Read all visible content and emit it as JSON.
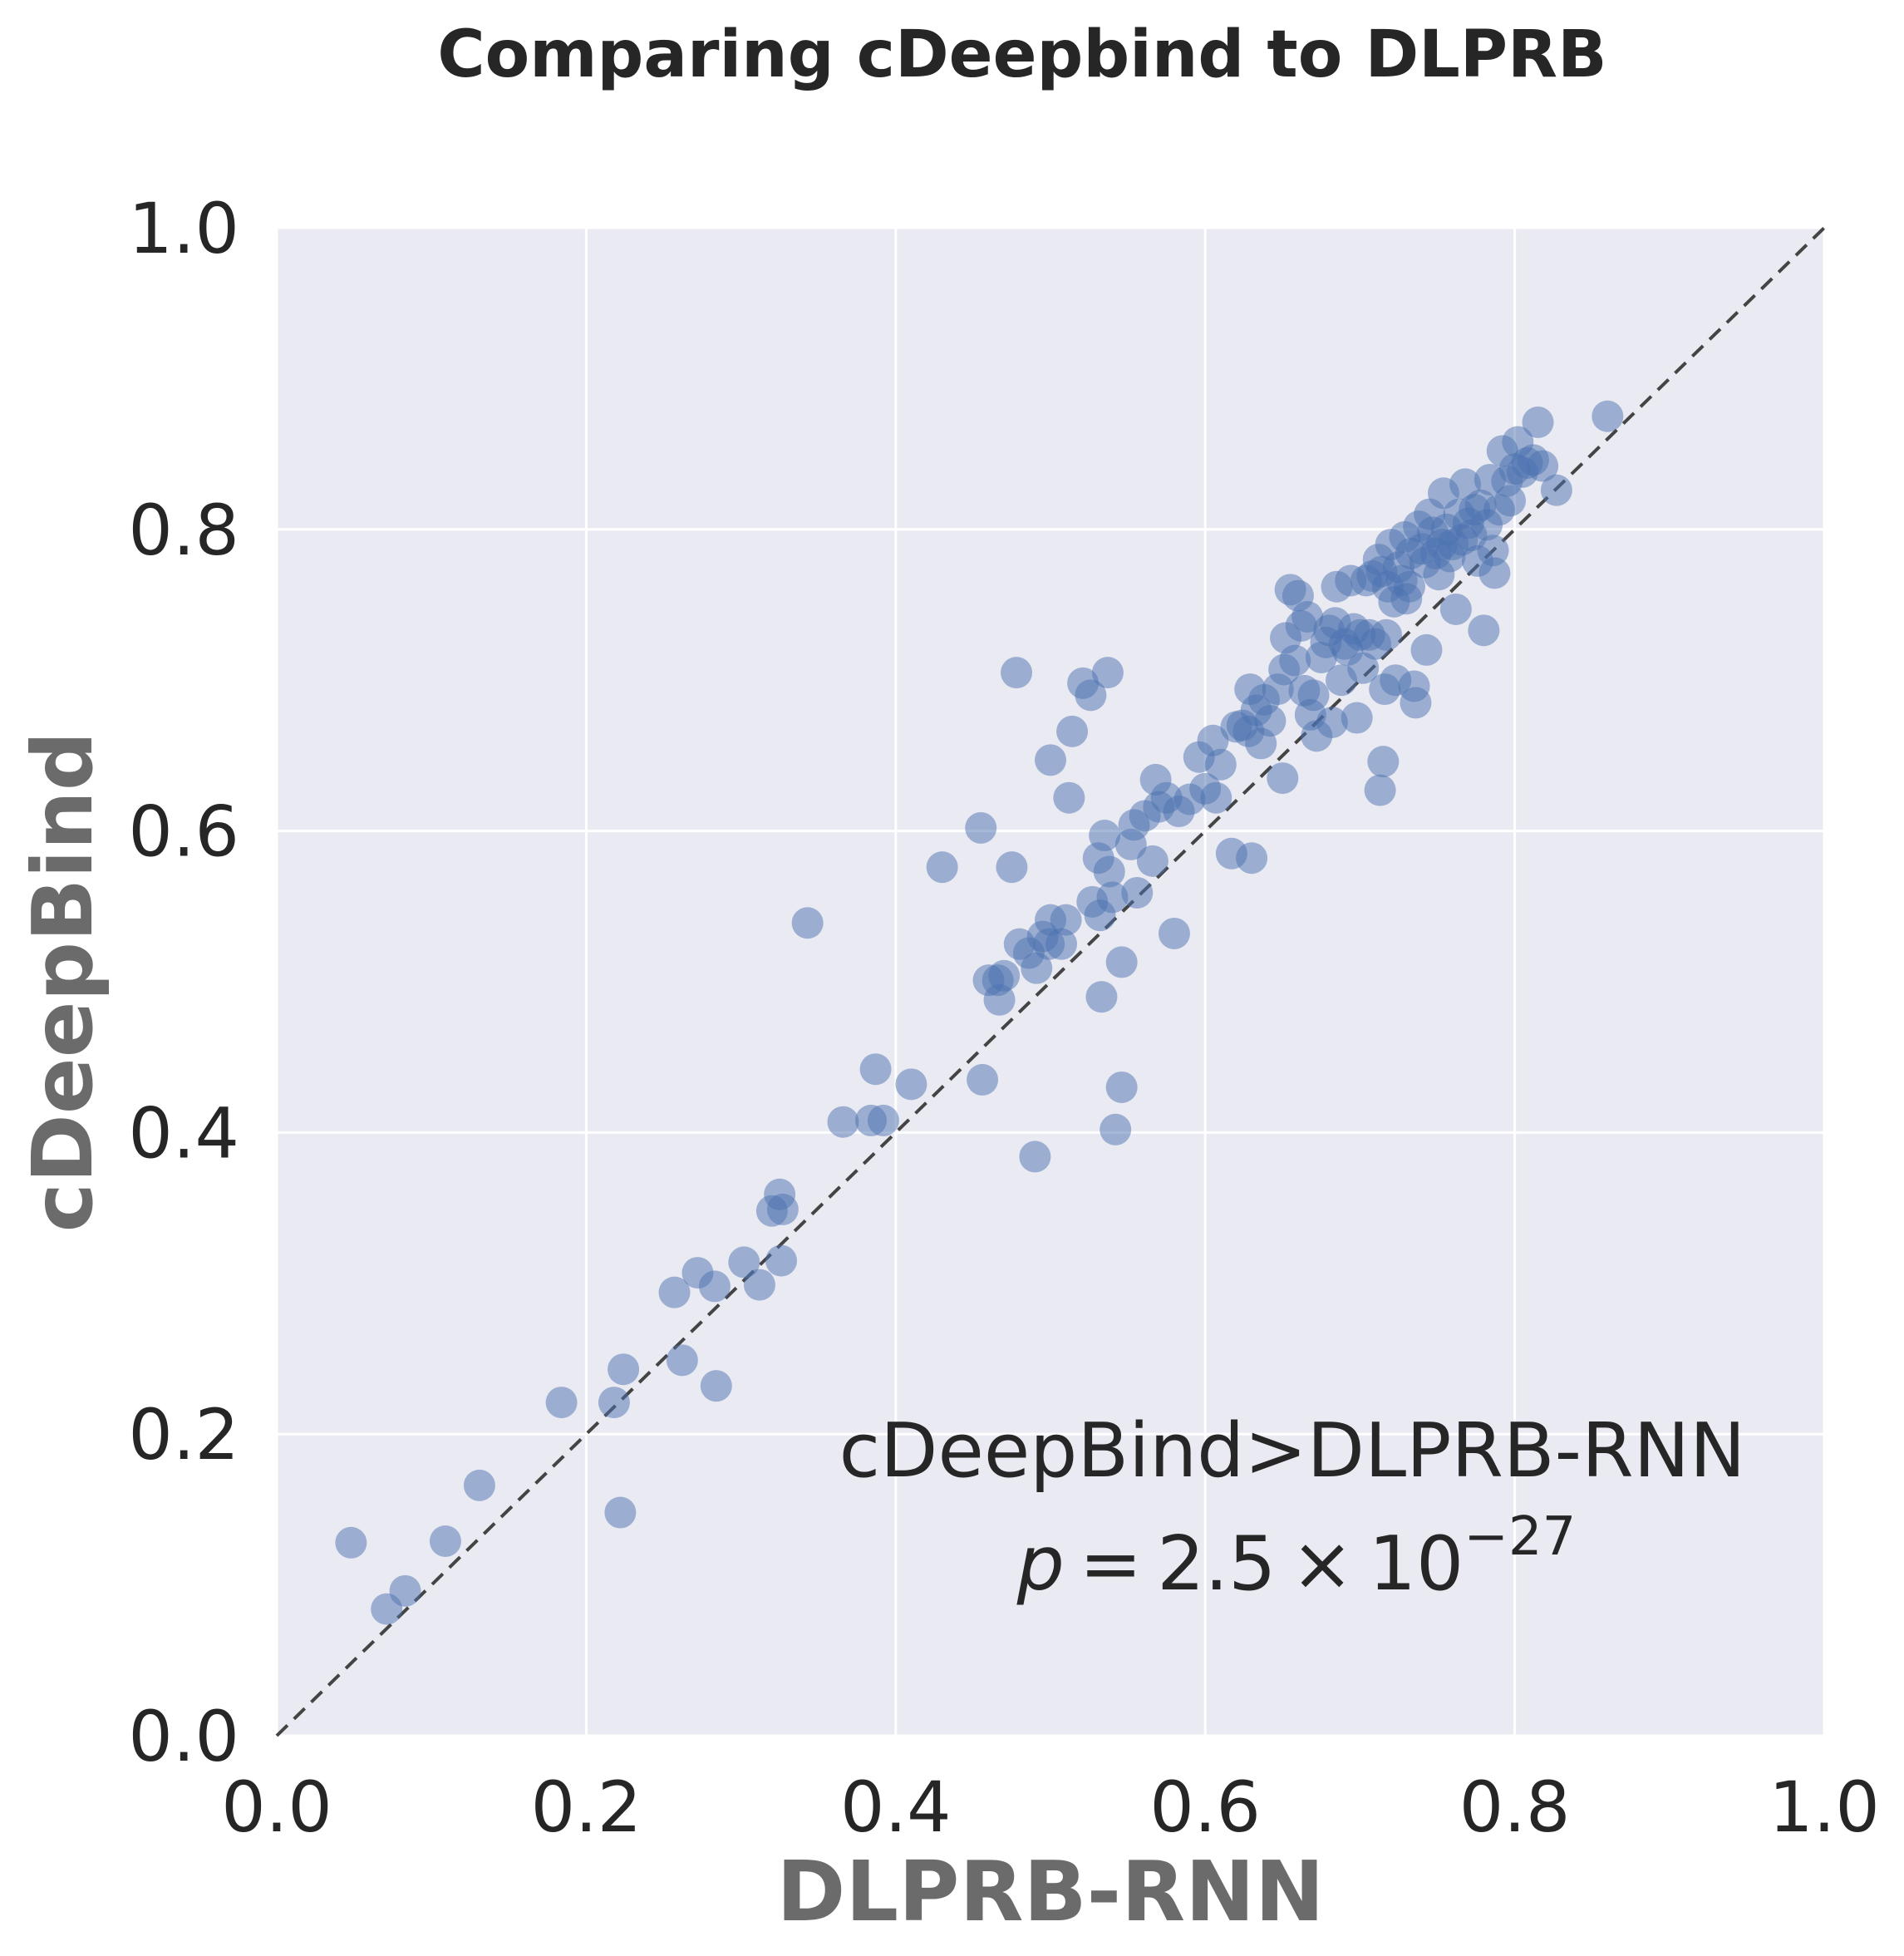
{
  "chart_data": {
    "type": "scatter",
    "title": "Comparing cDeepbind to DLPRB",
    "xlabel": "DLPRB-RNN",
    "ylabel": "cDeepBind",
    "xlim": [
      0.0,
      1.0
    ],
    "ylim": [
      0.0,
      1.0
    ],
    "xticks": [
      "0.0",
      "0.2",
      "0.4",
      "0.6",
      "0.8",
      "1.0"
    ],
    "yticks": [
      "0.0",
      "0.2",
      "0.4",
      "0.6",
      "0.8",
      "1.0"
    ],
    "grid": true,
    "reference_line": {
      "type": "identity",
      "style": "dashed",
      "from": [
        0,
        0
      ],
      "to": [
        1,
        1
      ]
    },
    "annotation": {
      "line1": "cDeepBind>DLPRB-RNN",
      "p_symbol": "p",
      "equals": "=",
      "p_mantissa": "2.5",
      "times": "×",
      "p_base": "10",
      "p_exponent": "−27"
    },
    "marker_color": "#4c72b0",
    "background_color": "#eaeaf2",
    "points": [
      [
        0.048,
        0.128
      ],
      [
        0.071,
        0.084
      ],
      [
        0.083,
        0.096
      ],
      [
        0.109,
        0.129
      ],
      [
        0.131,
        0.166
      ],
      [
        0.184,
        0.221
      ],
      [
        0.218,
        0.221
      ],
      [
        0.222,
        0.148
      ],
      [
        0.224,
        0.243
      ],
      [
        0.257,
        0.294
      ],
      [
        0.262,
        0.249
      ],
      [
        0.272,
        0.307
      ],
      [
        0.284,
        0.232
      ],
      [
        0.283,
        0.298
      ],
      [
        0.302,
        0.314
      ],
      [
        0.312,
        0.299
      ],
      [
        0.32,
        0.348
      ],
      [
        0.325,
        0.359
      ],
      [
        0.326,
        0.315
      ],
      [
        0.327,
        0.349
      ],
      [
        0.343,
        0.539
      ],
      [
        0.366,
        0.407
      ],
      [
        0.384,
        0.408
      ],
      [
        0.387,
        0.442
      ],
      [
        0.392,
        0.408
      ],
      [
        0.41,
        0.432
      ],
      [
        0.43,
        0.576
      ],
      [
        0.455,
        0.602
      ],
      [
        0.456,
        0.435
      ],
      [
        0.46,
        0.501
      ],
      [
        0.466,
        0.501
      ],
      [
        0.467,
        0.488
      ],
      [
        0.47,
        0.504
      ],
      [
        0.475,
        0.576
      ],
      [
        0.478,
        0.705
      ],
      [
        0.48,
        0.525
      ],
      [
        0.486,
        0.519
      ],
      [
        0.49,
        0.384
      ],
      [
        0.491,
        0.509
      ],
      [
        0.495,
        0.53
      ],
      [
        0.499,
        0.525
      ],
      [
        0.5,
        0.647
      ],
      [
        0.5,
        0.541
      ],
      [
        0.507,
        0.525
      ],
      [
        0.51,
        0.541
      ],
      [
        0.512,
        0.622
      ],
      [
        0.514,
        0.666
      ],
      [
        0.521,
        0.698
      ],
      [
        0.526,
        0.69
      ],
      [
        0.527,
        0.553
      ],
      [
        0.531,
        0.582
      ],
      [
        0.532,
        0.544
      ],
      [
        0.533,
        0.49
      ],
      [
        0.535,
        0.597
      ],
      [
        0.537,
        0.705
      ],
      [
        0.538,
        0.573
      ],
      [
        0.54,
        0.556
      ],
      [
        0.542,
        0.402
      ],
      [
        0.546,
        0.43
      ],
      [
        0.546,
        0.513
      ],
      [
        0.552,
        0.591
      ],
      [
        0.554,
        0.604
      ],
      [
        0.556,
        0.559
      ],
      [
        0.561,
        0.61
      ],
      [
        0.566,
        0.58
      ],
      [
        0.568,
        0.634
      ],
      [
        0.57,
        0.616
      ],
      [
        0.575,
        0.622
      ],
      [
        0.58,
        0.532
      ],
      [
        0.583,
        0.613
      ],
      [
        0.59,
        0.621
      ],
      [
        0.596,
        0.649
      ],
      [
        0.6,
        0.628
      ],
      [
        0.605,
        0.66
      ],
      [
        0.607,
        0.622
      ],
      [
        0.61,
        0.644
      ],
      [
        0.617,
        0.585
      ],
      [
        0.62,
        0.669
      ],
      [
        0.624,
        0.67
      ],
      [
        0.628,
        0.666
      ],
      [
        0.629,
        0.694
      ],
      [
        0.63,
        0.582
      ],
      [
        0.633,
        0.68
      ],
      [
        0.636,
        0.658
      ],
      [
        0.638,
        0.687
      ],
      [
        0.642,
        0.673
      ],
      [
        0.647,
        0.694
      ],
      [
        0.65,
        0.635
      ],
      [
        0.651,
        0.707
      ],
      [
        0.652,
        0.728
      ],
      [
        0.655,
        0.76
      ],
      [
        0.658,
        0.713
      ],
      [
        0.66,
        0.756
      ],
      [
        0.662,
        0.736
      ],
      [
        0.664,
        0.693
      ],
      [
        0.666,
        0.742
      ],
      [
        0.668,
        0.677
      ],
      [
        0.67,
        0.69
      ],
      [
        0.672,
        0.663
      ],
      [
        0.675,
        0.715
      ],
      [
        0.678,
        0.725
      ],
      [
        0.68,
        0.733
      ],
      [
        0.682,
        0.672
      ],
      [
        0.684,
        0.738
      ],
      [
        0.685,
        0.762
      ],
      [
        0.688,
        0.7
      ],
      [
        0.69,
        0.724
      ],
      [
        0.692,
        0.72
      ],
      [
        0.694,
        0.766
      ],
      [
        0.696,
        0.734
      ],
      [
        0.698,
        0.675
      ],
      [
        0.7,
        0.73
      ],
      [
        0.702,
        0.708
      ],
      [
        0.704,
        0.766
      ],
      [
        0.706,
        0.73
      ],
      [
        0.708,
        0.769
      ],
      [
        0.71,
        0.724
      ],
      [
        0.712,
        0.78
      ],
      [
        0.713,
        0.627
      ],
      [
        0.714,
        0.772
      ],
      [
        0.715,
        0.646
      ],
      [
        0.716,
        0.694
      ],
      [
        0.717,
        0.73
      ],
      [
        0.718,
        0.762
      ],
      [
        0.72,
        0.79
      ],
      [
        0.722,
        0.752
      ],
      [
        0.723,
        0.7
      ],
      [
        0.725,
        0.775
      ],
      [
        0.727,
        0.766
      ],
      [
        0.729,
        0.795
      ],
      [
        0.73,
        0.754
      ],
      [
        0.732,
        0.762
      ],
      [
        0.733,
        0.784
      ],
      [
        0.735,
        0.696
      ],
      [
        0.736,
        0.685
      ],
      [
        0.738,
        0.802
      ],
      [
        0.74,
        0.787
      ],
      [
        0.742,
        0.778
      ],
      [
        0.743,
        0.72
      ],
      [
        0.745,
        0.81
      ],
      [
        0.747,
        0.798
      ],
      [
        0.749,
        0.784
      ],
      [
        0.751,
        0.77
      ],
      [
        0.753,
        0.79
      ],
      [
        0.754,
        0.824
      ],
      [
        0.756,
        0.8
      ],
      [
        0.758,
        0.782
      ],
      [
        0.76,
        0.79
      ],
      [
        0.762,
        0.747
      ],
      [
        0.764,
        0.81
      ],
      [
        0.766,
        0.793
      ],
      [
        0.768,
        0.83
      ],
      [
        0.77,
        0.804
      ],
      [
        0.772,
        0.796
      ],
      [
        0.774,
        0.813
      ],
      [
        0.776,
        0.779
      ],
      [
        0.778,
        0.816
      ],
      [
        0.78,
        0.733
      ],
      [
        0.782,
        0.803
      ],
      [
        0.784,
        0.833
      ],
      [
        0.786,
        0.786
      ],
      [
        0.787,
        0.771
      ],
      [
        0.79,
        0.813
      ],
      [
        0.792,
        0.852
      ],
      [
        0.795,
        0.832
      ],
      [
        0.797,
        0.819
      ],
      [
        0.8,
        0.84
      ],
      [
        0.802,
        0.858
      ],
      [
        0.805,
        0.838
      ],
      [
        0.808,
        0.844
      ],
      [
        0.812,
        0.846
      ],
      [
        0.815,
        0.871
      ],
      [
        0.818,
        0.842
      ],
      [
        0.827,
        0.826
      ],
      [
        0.86,
        0.875
      ]
    ]
  }
}
